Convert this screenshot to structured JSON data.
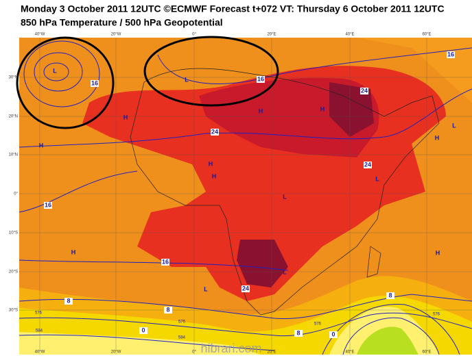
{
  "header": {
    "title_line1": "Monday 3 October 2011 12UTC ©ECMWF Forecast t+072 VT: Thursday 6 October 2011 12UTC",
    "title_line2": "850 hPa Temperature / 500 hPa Geopotential"
  },
  "lon_labels": [
    "40°W",
    "20°W",
    "0°",
    "20°E",
    "40°E",
    "60°E"
  ],
  "lat_labels": [
    "30°N",
    "20°N",
    "10°N",
    "0°",
    "10°S",
    "20°S",
    "30°S"
  ],
  "map_labels": [
    "L",
    "16",
    "L",
    "16",
    "16",
    "24",
    "H",
    "H",
    "H",
    "24",
    "H",
    "H",
    "H",
    "24",
    "L",
    "L",
    "H",
    "16",
    "L",
    "16",
    "H",
    "L",
    "24",
    "8",
    "L",
    "H",
    "8",
    "0",
    "8",
    "0",
    "8"
  ],
  "contour_values": [
    "576",
    "584",
    "576",
    "584",
    "576",
    "576"
  ],
  "watermark": "hibrari.com"
}
